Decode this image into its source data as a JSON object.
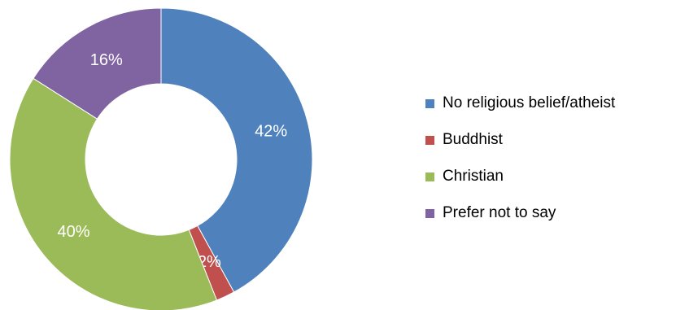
{
  "chart_data": {
    "type": "pie",
    "style": "donut",
    "categories": [
      "No religious belief/atheist",
      "Buddhist",
      "Christian",
      "Prefer not to say"
    ],
    "values": [
      42,
      2,
      40,
      16
    ],
    "data_labels": [
      "42%",
      "2%",
      "40%",
      "16%"
    ],
    "colors": [
      "#4F81BD",
      "#C0504D",
      "#9BBB59",
      "#8064A2"
    ],
    "legend_position": "right",
    "start_angle": "12 o'clock",
    "direction": "clockwise"
  }
}
